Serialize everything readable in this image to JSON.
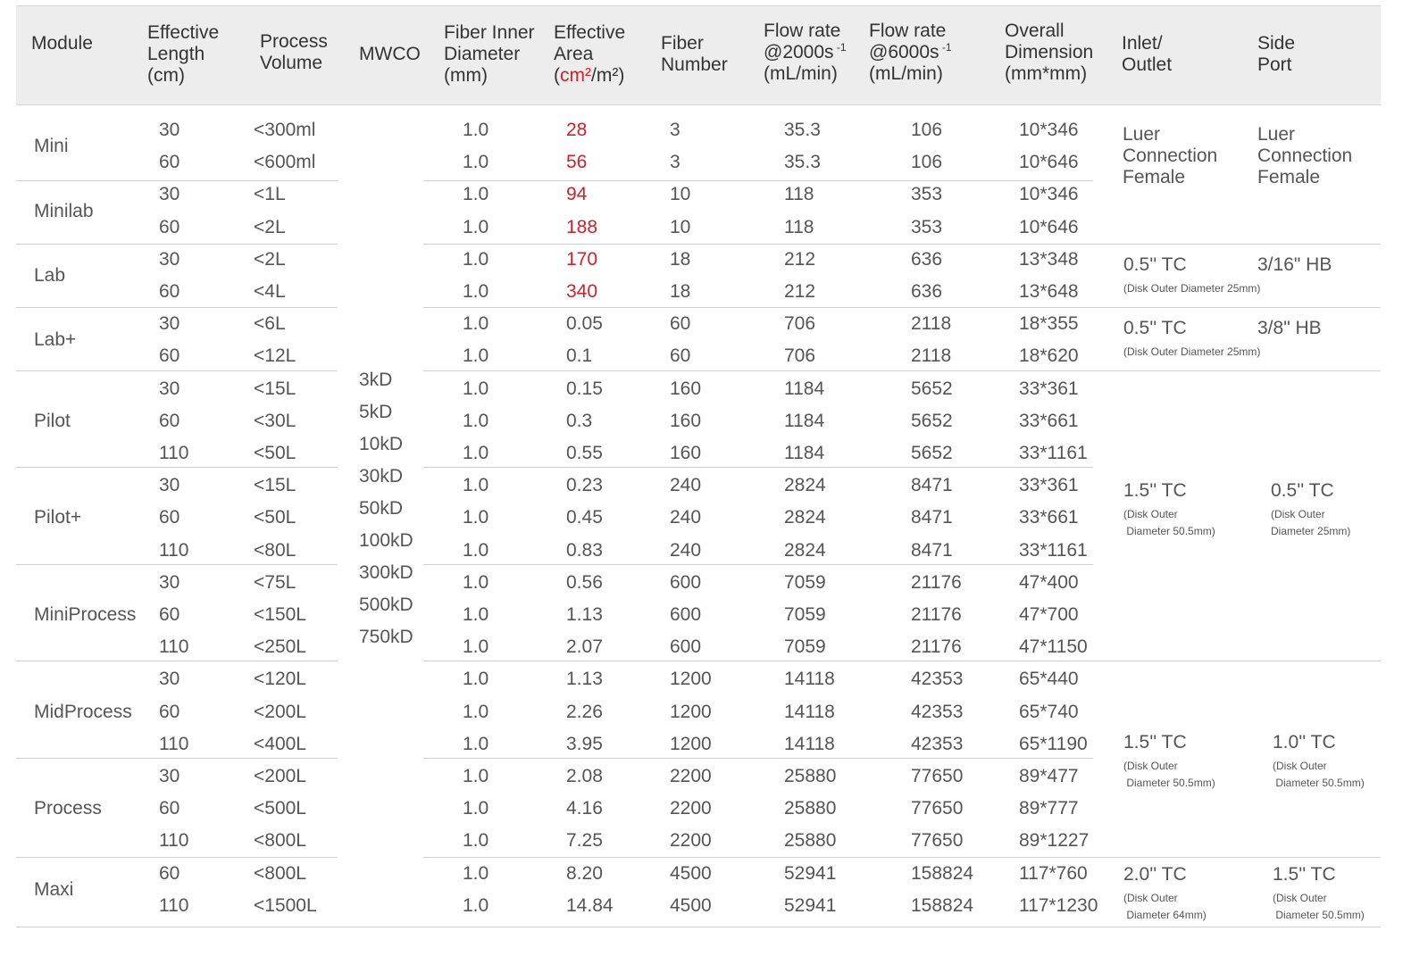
{
  "headers": {
    "module": "Module",
    "length": [
      "Effective",
      "Length",
      "(cm)"
    ],
    "volume": [
      "Process",
      "Volume"
    ],
    "mwco": "MWCO",
    "fiber_id": [
      "Fiber Inner",
      "Diameter",
      "(mm)"
    ],
    "area": [
      "Effective",
      "Area",
      "cm²",
      "/m²"
    ],
    "fiber_num": [
      "Fiber",
      "Number"
    ],
    "flow1": [
      "Flow rate",
      "@2000s",
      " -1",
      "(mL/min)"
    ],
    "flow2": [
      "Flow rate",
      "@6000s",
      " -1",
      "(mL/min)"
    ],
    "dimension": [
      "Overall",
      "Dimension",
      "(mm*mm)"
    ],
    "inlet": [
      "Inlet/",
      "Outlet"
    ],
    "side": [
      "Side",
      "Port"
    ]
  },
  "mwco_values": [
    "3kD",
    "5kD",
    "10kD",
    "30kD",
    "50kD",
    "100kD",
    "300kD",
    "500kD",
    "750kD"
  ],
  "modules": [
    {
      "name": "Mini",
      "rows": [
        [
          "30",
          "<300ml",
          "1.0",
          "28",
          "3",
          "35.3",
          "106",
          "10*346"
        ],
        [
          "60",
          "<600ml",
          "1.0",
          "56",
          "3",
          "35.3",
          "106",
          "10*646"
        ]
      ]
    },
    {
      "name": "Minilab",
      "rows": [
        [
          "30",
          "<1L",
          "1.0",
          "94",
          "10",
          "118",
          "353",
          "10*346"
        ],
        [
          "60",
          "<2L",
          "1.0",
          "188",
          "10",
          "118",
          "353",
          "10*646"
        ]
      ]
    },
    {
      "name": "Lab",
      "rows": [
        [
          "30",
          "<2L",
          "1.0",
          "170",
          "18",
          "212",
          "636",
          "13*348"
        ],
        [
          "60",
          "<4L",
          "1.0",
          "340",
          "18",
          "212",
          "636",
          "13*648"
        ]
      ]
    },
    {
      "name": "Lab+",
      "rows": [
        [
          "30",
          "<6L",
          "1.0",
          "0.05",
          "60",
          "706",
          "2118",
          "18*355"
        ],
        [
          "60",
          "<12L",
          "1.0",
          "0.1",
          "60",
          "706",
          "2118",
          "18*620"
        ]
      ]
    },
    {
      "name": "Pilot",
      "rows": [
        [
          "30",
          "<15L",
          "1.0",
          "0.15",
          "160",
          "1184",
          "5652",
          "33*361"
        ],
        [
          "60",
          "<30L",
          "1.0",
          "0.3",
          "160",
          "1184",
          "5652",
          "33*661"
        ],
        [
          "110",
          "<50L",
          "1.0",
          "0.55",
          "160",
          "1184",
          "5652",
          "33*1161"
        ]
      ]
    },
    {
      "name": "Pilot+",
      "rows": [
        [
          "30",
          "<15L",
          "1.0",
          "0.23",
          "240",
          "2824",
          "8471",
          "33*361"
        ],
        [
          "60",
          "<50L",
          "1.0",
          "0.45",
          "240",
          "2824",
          "8471",
          "33*661"
        ],
        [
          "110",
          "<80L",
          "1.0",
          "0.83",
          "240",
          "2824",
          "8471",
          "33*1161"
        ]
      ]
    },
    {
      "name": "MiniProcess",
      "rows": [
        [
          "30",
          "<75L",
          "1.0",
          "0.56",
          "600",
          "7059",
          "21176",
          "47*400"
        ],
        [
          "60",
          "<150L",
          "1.0",
          "1.13",
          "600",
          "7059",
          "21176",
          "47*700"
        ],
        [
          "110",
          "<250L",
          "1.0",
          "2.07",
          "600",
          "7059",
          "21176",
          "47*1150"
        ]
      ]
    },
    {
      "name": "MidProcess",
      "rows": [
        [
          "30",
          "<120L",
          "1.0",
          "1.13",
          "1200",
          "14118",
          "42353",
          "65*440"
        ],
        [
          "60",
          "<200L",
          "1.0",
          "2.26",
          "1200",
          "14118",
          "42353",
          "65*740"
        ],
        [
          "110",
          "<400L",
          "1.0",
          "3.95",
          "1200",
          "14118",
          "42353",
          "65*1190"
        ]
      ]
    },
    {
      "name": "Process",
      "rows": [
        [
          "30",
          "<200L",
          "1.0",
          "2.08",
          "2200",
          "25880",
          "77650",
          "89*477"
        ],
        [
          "60",
          "<500L",
          "1.0",
          "4.16",
          "2200",
          "25880",
          "77650",
          "89*777"
        ],
        [
          "110",
          "<800L",
          "1.0",
          "7.25",
          "2200",
          "25880",
          "77650",
          "89*1227"
        ]
      ]
    },
    {
      "name": "Maxi",
      "rows": [
        [
          "60",
          "<800L",
          "1.0",
          "8.20",
          "4500",
          "52941",
          "158824",
          "117*760"
        ],
        [
          "110",
          "<1500L",
          "1.0",
          "14.84",
          "4500",
          "52941",
          "158824",
          "117*1230"
        ]
      ]
    }
  ],
  "ports": {
    "luer_inlet": [
      "Luer",
      "Connection",
      "Female"
    ],
    "luer_side": [
      "Luer",
      "Connection",
      "Female"
    ],
    "lab_inlet": "0.5'' TC",
    "lab_inlet_note": "(Disk Outer Diameter 25mm)",
    "lab_side": "3/16\" HB",
    "labplus_inlet": "0.5'' TC",
    "labplus_inlet_note": "(Disk Outer Diameter 25mm)",
    "labplus_side": "3/8\" HB",
    "pilot_inlet": "1.5'' TC",
    "pilot_inlet_note": [
      "(Disk Outer",
      " Diameter 50.5mm)"
    ],
    "pilot_side": "0.5'' TC",
    "pilot_side_note": [
      "(Disk Outer",
      "Diameter 25mm)"
    ],
    "process_inlet": "1.5'' TC",
    "process_inlet_note": [
      "(Disk Outer",
      " Diameter 50.5mm)"
    ],
    "process_side": "1.0'' TC",
    "process_side_note": [
      "(Disk Outer",
      " Diameter 50.5mm)"
    ],
    "maxi_inlet": "2.0'' TC",
    "maxi_inlet_note": [
      "(Disk Outer",
      " Diameter 64mm)"
    ],
    "maxi_side": "1.5'' TC",
    "maxi_side_note": [
      "(Disk Outer",
      " Diameter 50.5mm)"
    ]
  },
  "colors": {
    "accent_red": "#d12027",
    "header_bg": "#ededed",
    "text": "#555555"
  }
}
